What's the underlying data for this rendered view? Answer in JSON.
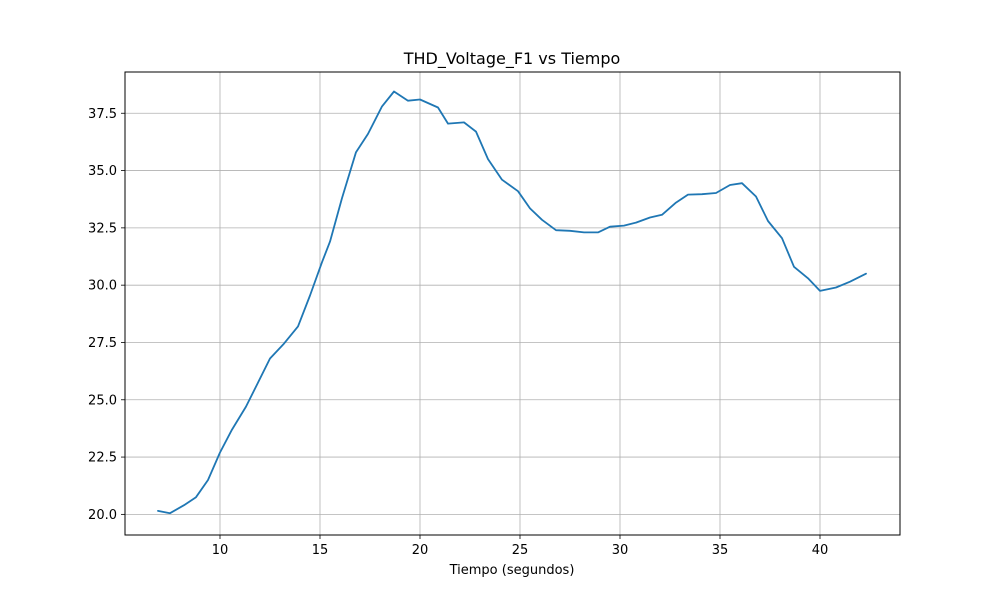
{
  "chart_data": {
    "type": "line",
    "title": "THD_Voltage_F1 vs Tiempo",
    "xlabel": "Tiempo (segundos)",
    "ylabel": "",
    "xlim": [
      5.25,
      44.0
    ],
    "ylim": [
      19.1,
      39.3
    ],
    "xticks": [
      10,
      15,
      20,
      25,
      30,
      35,
      40
    ],
    "xtick_labels": [
      "10",
      "15",
      "20",
      "25",
      "30",
      "35",
      "40"
    ],
    "yticks": [
      20.0,
      22.5,
      25.0,
      27.5,
      30.0,
      32.5,
      35.0,
      37.5
    ],
    "ytick_labels": [
      "20.0",
      "22.5",
      "25.0",
      "27.5",
      "30.0",
      "32.5",
      "35.0",
      "37.5"
    ],
    "grid": true,
    "line_color": "#1f77b4",
    "series": [
      {
        "x": [
          6.9,
          7.5,
          8.2,
          8.8,
          9.4,
          10.0,
          10.6,
          11.3,
          11.9,
          12.5,
          13.2,
          13.9,
          14.5,
          15.1,
          15.5,
          16.1,
          16.8,
          17.4,
          18.1,
          18.7,
          19.4,
          20.0,
          20.9,
          21.4,
          22.2,
          22.8,
          23.4,
          24.1,
          24.9,
          25.5,
          26.1,
          26.8,
          27.5,
          28.2,
          28.9,
          29.5,
          30.2,
          30.8,
          31.5,
          32.1,
          32.8,
          33.4,
          34.1,
          34.8,
          35.5,
          36.1,
          36.8,
          37.4,
          38.1,
          38.7,
          39.4,
          40.0,
          40.8,
          41.5,
          42.3
        ],
        "y": [
          20.15,
          20.05,
          20.4,
          20.75,
          21.5,
          22.7,
          23.7,
          24.7,
          25.75,
          26.8,
          27.45,
          28.2,
          29.55,
          31.0,
          31.9,
          33.8,
          35.8,
          36.6,
          37.8,
          38.45,
          38.05,
          38.1,
          37.75,
          37.05,
          37.1,
          36.7,
          35.5,
          34.6,
          34.1,
          33.35,
          32.85,
          32.4,
          32.37,
          32.3,
          32.3,
          32.55,
          32.6,
          32.73,
          32.95,
          33.07,
          33.6,
          33.95,
          33.97,
          34.02,
          34.37,
          34.45,
          33.87,
          32.8,
          32.05,
          30.8,
          30.3,
          29.75,
          29.9,
          30.15,
          30.5
        ]
      }
    ]
  }
}
